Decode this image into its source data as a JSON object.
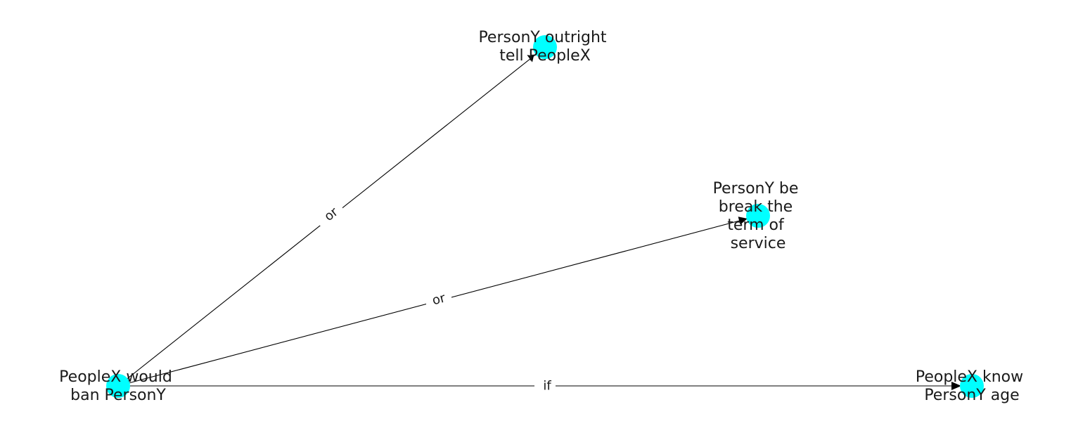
{
  "colors": {
    "node_fill": "#00ffff",
    "edge_stroke": "#000000",
    "text": "#1a1a1a",
    "background": "#ffffff"
  },
  "nodes": {
    "ban": {
      "label_lines": [
        "PeopleX would",
        "ban PersonY"
      ]
    },
    "tell": {
      "label_lines": [
        "PersonY outright",
        "tell PeopleX"
      ]
    },
    "break": {
      "label_lines": [
        "PersonY be",
        "break the",
        "term of",
        "service"
      ]
    },
    "know": {
      "label_lines": [
        "PeopleX know",
        "PersonY age"
      ]
    }
  },
  "edges": {
    "ban_tell": {
      "from": "ban",
      "to": "tell",
      "label": "or"
    },
    "ban_break": {
      "from": "ban",
      "to": "break",
      "label": "or"
    },
    "ban_know": {
      "from": "ban",
      "to": "know",
      "label": "if"
    }
  }
}
